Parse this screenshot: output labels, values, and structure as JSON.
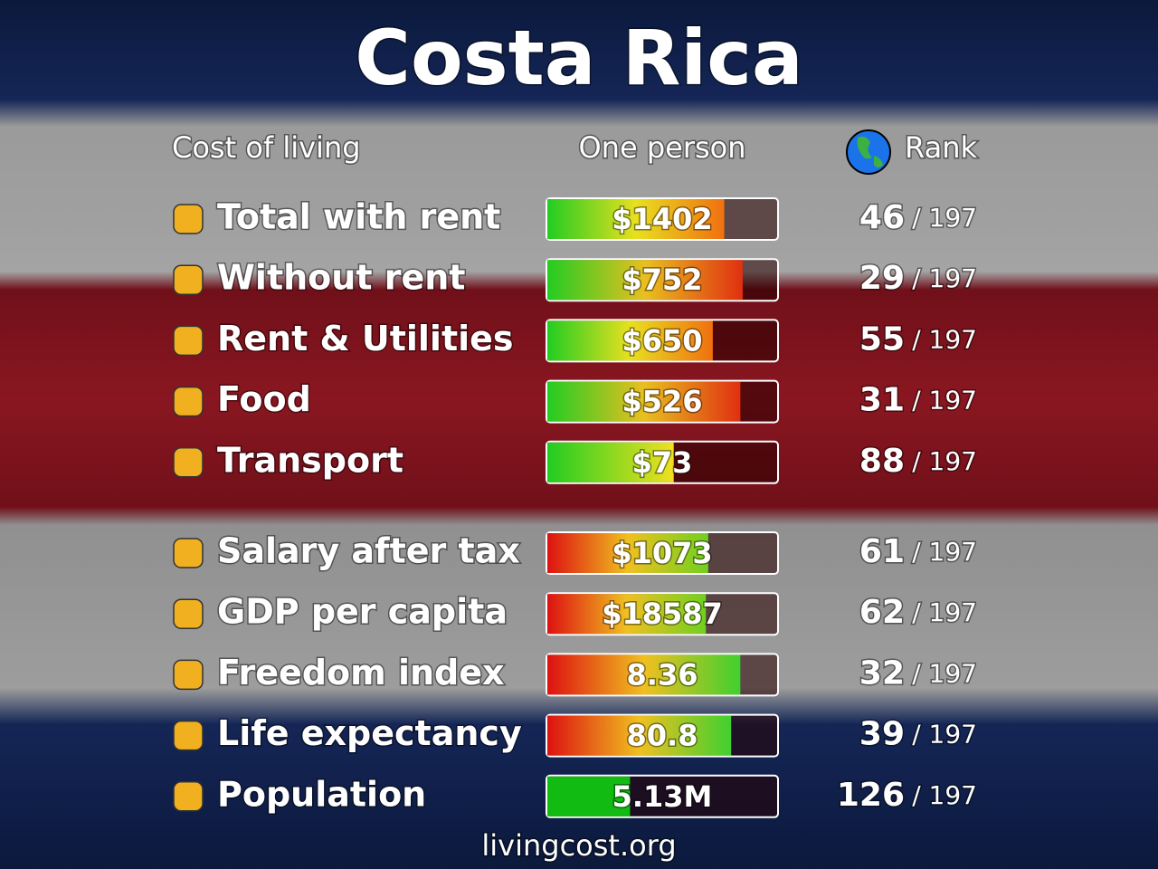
{
  "title": "Costa Rica",
  "header": {
    "label": "Cost of living",
    "value": "One person",
    "rank": "Rank"
  },
  "cost_rows": [
    {
      "label": "Total with rent",
      "value": "$1402",
      "fill": 77,
      "rank": 46,
      "rank_color": "#f7931e",
      "total": "/ 197",
      "colors": [
        "#22cc22",
        "#e8e020",
        "#f07010"
      ]
    },
    {
      "label": "Without rent",
      "value": "$752",
      "fill": 85,
      "rank": 29,
      "rank_color": "#f26522",
      "total": "/ 197",
      "colors": [
        "#22cc22",
        "#e8c020",
        "#e03010"
      ]
    },
    {
      "label": "Rent & Utilities",
      "value": "$650",
      "fill": 72,
      "rank": 55,
      "rank_color": "#f7941d",
      "total": "/ 197",
      "colors": [
        "#22cc22",
        "#e8e020",
        "#f07010"
      ]
    },
    {
      "label": "Food",
      "value": "$526",
      "fill": 84,
      "rank": 31,
      "rank_color": "#f26522",
      "total": "/ 197",
      "colors": [
        "#22cc22",
        "#e8c020",
        "#e03010"
      ]
    },
    {
      "label": "Transport",
      "value": "$73",
      "fill": 55,
      "rank": 88,
      "rank_color": "#f5d020",
      "total": "/ 197",
      "colors": [
        "#22cc22",
        "#8ad820",
        "#f0e020"
      ]
    }
  ],
  "other_rows": [
    {
      "label": "Salary after tax",
      "value": "$1073",
      "fill": 70,
      "rank": 61,
      "rank_color": "#b8e020",
      "total": "/ 197",
      "colors": [
        "#dd1111",
        "#f0c020",
        "#70d020"
      ]
    },
    {
      "label": "GDP per capita",
      "value": "$18587",
      "fill": 69,
      "rank": 62,
      "rank_color": "#8ad820",
      "total": "/ 197",
      "colors": [
        "#dd1111",
        "#f0c020",
        "#70d020"
      ]
    },
    {
      "label": "Freedom index",
      "value": "8.36",
      "fill": 84,
      "rank": 32,
      "rank_color": "#50d020",
      "total": "/ 197",
      "colors": [
        "#dd1111",
        "#f0c020",
        "#40d030"
      ]
    },
    {
      "label": "Life expectancy",
      "value": "80.8",
      "fill": 80,
      "rank": 39,
      "rank_color": "#50d020",
      "total": "/ 197",
      "colors": [
        "#dd1111",
        "#f0c020",
        "#40d030"
      ]
    },
    {
      "label": "Population",
      "value": "5.13M",
      "fill": 36,
      "rank": 126,
      "rank_color": "#ffffff",
      "total": "/ 197",
      "colors": [
        "#11bb11",
        "#11bb11",
        "#11bb11"
      ]
    }
  ],
  "footer": "livingcost.org"
}
